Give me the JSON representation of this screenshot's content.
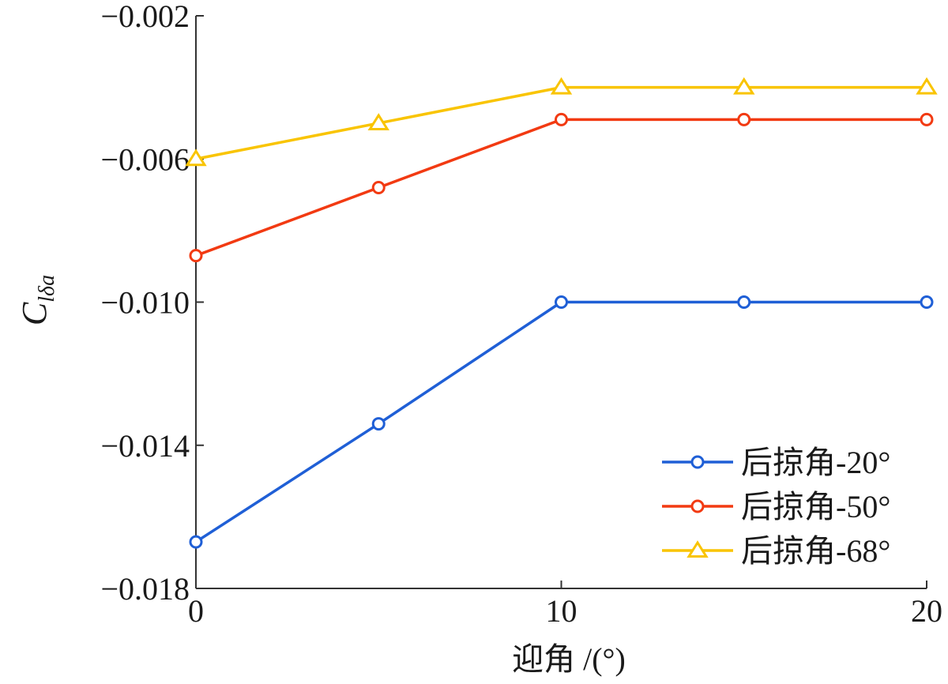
{
  "chart_data": {
    "type": "line",
    "title": "",
    "xlabel": "迎角 /(°)",
    "ylabel": "C",
    "ylabel_subscript": "lδa",
    "xlim": [
      0,
      20
    ],
    "ylim": [
      -0.018,
      -0.002
    ],
    "xticks": [
      0,
      10,
      20
    ],
    "xtick_labels": [
      "0",
      "10",
      "20"
    ],
    "yticks": [
      -0.002,
      -0.006,
      -0.01,
      -0.014,
      -0.018
    ],
    "ytick_labels": [
      "−0.002",
      "−0.006",
      "−0.010",
      "−0.014",
      "−0.018"
    ],
    "grid": false,
    "legend_position": "bottom-right",
    "x": [
      0,
      5,
      10,
      15,
      20
    ],
    "series": [
      {
        "name": "后掠角-20°",
        "color": "#1F5FD6",
        "marker": "circle",
        "values": [
          -0.0167,
          -0.0134,
          -0.01,
          -0.01,
          -0.01
        ]
      },
      {
        "name": "后掠角-50°",
        "color": "#F23A12",
        "marker": "circle",
        "values": [
          -0.0087,
          -0.0068,
          -0.0049,
          -0.0049,
          -0.0049
        ]
      },
      {
        "name": "后掠角-68°",
        "color": "#F9C400",
        "marker": "triangle",
        "values": [
          -0.006,
          -0.005,
          -0.004,
          -0.004,
          -0.004
        ]
      }
    ]
  }
}
